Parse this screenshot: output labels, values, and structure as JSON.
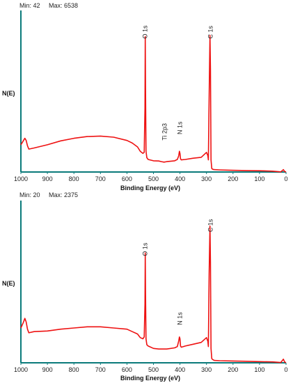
{
  "chart_data": [
    {
      "type": "line",
      "panel": "top",
      "min_label": "Min: 42",
      "max_label": "Max: 6538",
      "ylabel": "N(E)",
      "xlabel": "Binding Energy (eV)",
      "xlim": [
        1000,
        0
      ],
      "x_reversed": true,
      "ylim": [
        42,
        6538
      ],
      "xticks": [
        1000,
        900,
        800,
        700,
        600,
        500,
        400,
        300,
        200,
        100,
        0
      ],
      "line_color": "#ee1111",
      "axis_color": "#0a7a7a",
      "annotations": [
        {
          "text": "O 1s",
          "x": 531,
          "y": 6200
        },
        {
          "text": "C 1s",
          "x": 285,
          "y": 6200
        },
        {
          "text": "N 1s",
          "x": 400,
          "y": 1780
        },
        {
          "text": "Ti 2p3",
          "x": 458,
          "y": 1500
        }
      ],
      "series": [
        {
          "x": [
            1000,
            990,
            985,
            980,
            975,
            970,
            950,
            900,
            850,
            800,
            750,
            700,
            650,
            600,
            580,
            560,
            550,
            540,
            535,
            532,
            531,
            530,
            528,
            525,
            520,
            500,
            480,
            470,
            460,
            450,
            420,
            410,
            405,
            402,
            400,
            398,
            395,
            380,
            350,
            320,
            300,
            295,
            293,
            290,
            287,
            285,
            283,
            280,
            275,
            270,
            250,
            200,
            150,
            100,
            50,
            20,
            10,
            5,
            0
          ],
          "y": [
            1300,
            1500,
            1600,
            1500,
            1250,
            1100,
            1150,
            1300,
            1480,
            1600,
            1680,
            1700,
            1650,
            1500,
            1380,
            1200,
            1000,
            900,
            950,
            3000,
            6300,
            4000,
            1000,
            700,
            620,
            560,
            550,
            520,
            500,
            520,
            560,
            620,
            780,
            1000,
            900,
            650,
            600,
            620,
            680,
            720,
            950,
            800,
            600,
            3500,
            6350,
            4800,
            600,
            200,
            160,
            150,
            140,
            120,
            110,
            100,
            80,
            50,
            150,
            60,
            50
          ]
        }
      ]
    },
    {
      "type": "line",
      "panel": "bottom",
      "min_label": "Min: 20",
      "max_label": "Max: 2375",
      "ylabel": "N(E)",
      "xlabel": "Binding Energy (eV)",
      "xlim": [
        1000,
        0
      ],
      "x_reversed": true,
      "ylim": [
        20,
        2375
      ],
      "xticks": [
        1000,
        900,
        800,
        700,
        600,
        500,
        400,
        300,
        200,
        100,
        0
      ],
      "line_color": "#ee1111",
      "axis_color": "#0a7a7a",
      "annotations": [
        {
          "text": "O 1s",
          "x": 531,
          "y": 1800
        },
        {
          "text": "C 1s",
          "x": 285,
          "y": 2200
        },
        {
          "text": "N 1s",
          "x": 400,
          "y": 650
        }
      ],
      "series": [
        {
          "x": [
            1000,
            990,
            985,
            980,
            975,
            970,
            950,
            900,
            850,
            800,
            750,
            700,
            650,
            600,
            580,
            560,
            550,
            540,
            535,
            532,
            531,
            530,
            528,
            525,
            520,
            500,
            480,
            450,
            420,
            410,
            405,
            402,
            400,
            398,
            395,
            380,
            350,
            320,
            300,
            295,
            293,
            290,
            287,
            285,
            283,
            280,
            275,
            270,
            250,
            200,
            150,
            100,
            50,
            20,
            10,
            5,
            0
          ],
          "y": [
            600,
            700,
            760,
            700,
            580,
            520,
            540,
            550,
            580,
            600,
            620,
            620,
            600,
            580,
            540,
            500,
            440,
            420,
            450,
            1000,
            1850,
            1200,
            420,
            320,
            300,
            260,
            250,
            250,
            270,
            290,
            380,
            450,
            420,
            300,
            280,
            300,
            330,
            360,
            440,
            380,
            290,
            1500,
            2300,
            1700,
            260,
            90,
            70,
            60,
            55,
            50,
            45,
            40,
            35,
            25,
            80,
            30,
            25
          ]
        }
      ]
    }
  ]
}
